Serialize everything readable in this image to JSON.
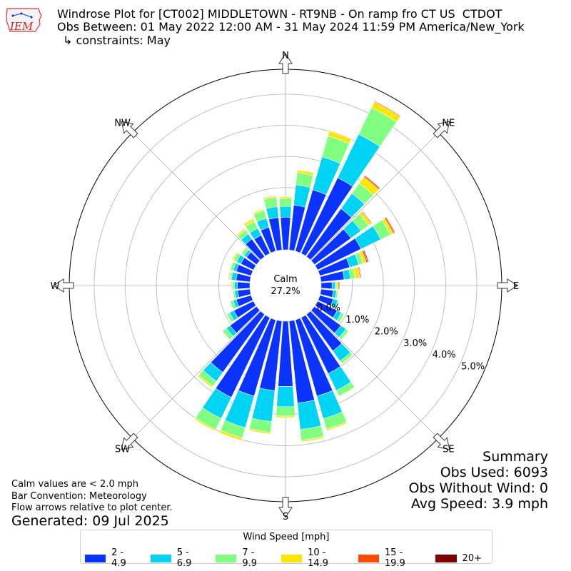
{
  "header": {
    "line1": "Windrose Plot for [CT002] MIDDLETOWN - RT9NB - On ramp fro CT US  CTDOT",
    "line2": "Obs Between: 01 May 2022 12:00 AM - 31 May 2024 11:59 PM America/New_York",
    "line3": "↳ constraints: May",
    "logo_text": "IEM"
  },
  "summary": {
    "title": "Summary",
    "obs_used": "Obs Used: 6093",
    "obs_without_wind": "Obs Without Wind: 0",
    "avg_speed": "Avg Speed: 3.9 mph"
  },
  "footnotes": {
    "calm_note": "Calm values are < 2.0 mph",
    "bar_convention": "Bar Convention: Meteorology",
    "flow_arrows": "Flow arrows relative to plot center.",
    "generated": "Generated: 09 Jul 2025"
  },
  "chart_data": {
    "type": "windrose",
    "calm_label": "Calm",
    "calm_value": "27.2%",
    "compass_labels": [
      "N",
      "NE",
      "E",
      "SE",
      "S",
      "SW",
      "W",
      "NW"
    ],
    "radial_ticks": [
      {
        "value": 0,
        "label": "0.0%"
      },
      {
        "value": 1,
        "label": "1.0%"
      },
      {
        "value": 2,
        "label": "2.0%"
      },
      {
        "value": 3,
        "label": "3.0%"
      },
      {
        "value": 4,
        "label": "4.0%"
      },
      {
        "value": 5,
        "label": "5.0%"
      }
    ],
    "radial_max": 5.8,
    "legend_title": "Wind Speed [mph]",
    "bins": [
      {
        "label": "2 - 4.9",
        "color": "#0a33ff"
      },
      {
        "label": "5 - 6.9",
        "color": "#00d4f5"
      },
      {
        "label": "7 - 9.9",
        "color": "#80ff80"
      },
      {
        "label": "10 - 14.9",
        "color": "#ffe600"
      },
      {
        "label": "15 - 19.9",
        "color": "#ff4a00"
      },
      {
        "label": "20+",
        "color": "#800000"
      }
    ],
    "directions_deg": [
      0,
      10,
      20,
      30,
      40,
      50,
      60,
      70,
      80,
      90,
      100,
      110,
      120,
      130,
      140,
      150,
      160,
      170,
      180,
      190,
      200,
      210,
      220,
      230,
      240,
      250,
      260,
      270,
      280,
      290,
      300,
      310,
      320,
      330,
      340,
      350
    ],
    "values_pct": [
      [
        1.05,
        0.35,
        0.25,
        0.05,
        0.0,
        0.0
      ],
      [
        1.45,
        0.65,
        0.4,
        0.08,
        0.0,
        0.0
      ],
      [
        2.05,
        1.1,
        0.7,
        0.15,
        0.02,
        0.0
      ],
      [
        2.7,
        1.55,
        0.95,
        0.2,
        0.03,
        0.0
      ],
      [
        1.9,
        0.6,
        0.4,
        0.25,
        0.05,
        0.02
      ],
      [
        1.45,
        0.4,
        0.3,
        0.1,
        0.03,
        0.0
      ],
      [
        1.55,
        0.7,
        0.35,
        0.1,
        0.05,
        0.02
      ],
      [
        1.0,
        0.3,
        0.15,
        0.1,
        0.05,
        0.03
      ],
      [
        0.75,
        0.2,
        0.15,
        0.15,
        0.03,
        0.02
      ],
      [
        0.35,
        0.1,
        0.05,
        0.05,
        0.03,
        0.02
      ],
      [
        0.4,
        0.1,
        0.05,
        0.02,
        0.0,
        0.0
      ],
      [
        0.45,
        0.15,
        0.05,
        0.0,
        0.0,
        0.0
      ],
      [
        0.7,
        0.15,
        0.1,
        0.0,
        0.0,
        0.0
      ],
      [
        1.05,
        0.2,
        0.1,
        0.0,
        0.0,
        0.0
      ],
      [
        1.45,
        0.4,
        0.1,
        0.02,
        0.0,
        0.0
      ],
      [
        2.0,
        0.6,
        0.2,
        0.02,
        0.0,
        0.0
      ],
      [
        2.55,
        0.75,
        0.35,
        0.05,
        0.01,
        0.0
      ],
      [
        2.65,
        0.85,
        0.35,
        0.05,
        0.01,
        0.0
      ],
      [
        2.1,
        0.65,
        0.3,
        0.05,
        0.0,
        0.0
      ],
      [
        2.25,
        1.0,
        0.35,
        0.05,
        0.0,
        0.0
      ],
      [
        2.55,
        1.05,
        0.35,
        0.08,
        0.0,
        0.0
      ],
      [
        2.85,
        0.75,
        0.4,
        0.05,
        0.0,
        0.0
      ],
      [
        2.3,
        0.35,
        0.2,
        0.05,
        0.0,
        0.0
      ],
      [
        1.05,
        0.15,
        0.15,
        0.0,
        0.0,
        0.0
      ],
      [
        0.7,
        0.15,
        0.1,
        0.0,
        0.0,
        0.0
      ],
      [
        0.5,
        0.1,
        0.1,
        0.0,
        0.0,
        0.0
      ],
      [
        0.4,
        0.1,
        0.05,
        0.02,
        0.0,
        0.0
      ],
      [
        0.4,
        0.1,
        0.05,
        0.03,
        0.02,
        0.0
      ],
      [
        0.45,
        0.15,
        0.05,
        0.03,
        0.02,
        0.0
      ],
      [
        0.5,
        0.1,
        0.1,
        0.02,
        0.0,
        0.0
      ],
      [
        0.45,
        0.15,
        0.1,
        0.05,
        0.0,
        0.0
      ],
      [
        0.4,
        0.1,
        0.1,
        0.03,
        0.0,
        0.0
      ],
      [
        0.7,
        0.2,
        0.15,
        0.05,
        0.02,
        0.0
      ],
      [
        0.65,
        0.25,
        0.25,
        0.08,
        0.02,
        0.0
      ],
      [
        0.8,
        0.3,
        0.25,
        0.05,
        0.0,
        0.0
      ],
      [
        1.05,
        0.35,
        0.3,
        0.05,
        0.0,
        0.0
      ]
    ]
  }
}
